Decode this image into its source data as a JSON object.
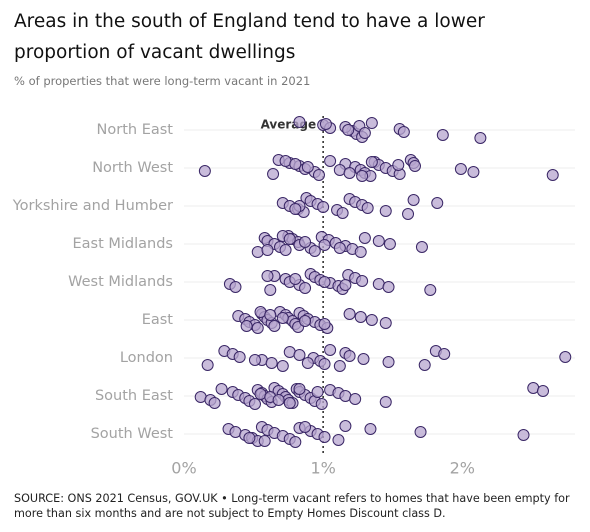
{
  "chart_data": {
    "type": "strip",
    "title": "Areas in the south of England tend to have a lower proportion of vacant dwellings",
    "subtitle": "% of properties that were long-term vacant in 2021",
    "source": "SOURCE: ONS 2021 Census, GOV.UK • Long-term vacant refers to homes that have been empty for more than six months and are not subject to Empty Homes Discount class D.",
    "categories": [
      "North East",
      "North West",
      "Yorkshire and Humber",
      "East Midlands",
      "West Midlands",
      "East",
      "London",
      "South East",
      "South West"
    ],
    "values": [
      [
        0.83,
        1.0,
        1.05,
        1.21,
        1.24,
        1.28,
        1.35,
        1.26,
        1.55,
        1.58,
        1.86,
        2.13,
        1.02,
        1.16,
        1.18,
        1.3
      ],
      [
        0.15,
        0.64,
        0.68,
        0.76,
        0.83,
        0.87,
        0.94,
        0.97,
        1.05,
        1.16,
        1.23,
        1.27,
        1.3,
        1.34,
        1.37,
        1.4,
        1.45,
        1.5,
        1.55,
        1.63,
        1.65,
        1.66,
        1.99,
        2.08,
        2.65,
        0.73,
        0.8,
        0.89,
        1.12,
        1.19,
        1.28,
        1.35,
        1.54
      ],
      [
        0.71,
        0.76,
        0.82,
        0.86,
        0.88,
        0.91,
        0.96,
        1.0,
        1.1,
        1.14,
        1.19,
        1.23,
        1.28,
        1.32,
        1.45,
        1.61,
        1.65,
        1.82,
        0.83,
        0.8
      ],
      [
        0.53,
        0.58,
        0.6,
        0.65,
        0.69,
        0.73,
        0.75,
        0.78,
        0.82,
        0.83,
        0.91,
        0.94,
        0.99,
        1.04,
        1.09,
        1.16,
        1.21,
        1.27,
        1.3,
        1.4,
        1.48,
        1.71,
        0.6,
        0.71,
        0.76,
        0.87,
        1.01,
        1.12
      ],
      [
        0.33,
        0.37,
        0.62,
        0.65,
        0.73,
        0.76,
        0.83,
        0.87,
        0.91,
        0.94,
        0.98,
        1.05,
        1.11,
        1.14,
        1.18,
        1.23,
        1.28,
        1.4,
        1.47,
        1.77,
        0.6,
        0.8,
        1.01,
        1.16
      ],
      [
        0.39,
        0.44,
        0.47,
        0.51,
        0.53,
        0.56,
        0.58,
        0.6,
        0.63,
        0.65,
        0.69,
        0.73,
        0.75,
        0.78,
        0.8,
        0.82,
        0.83,
        0.86,
        0.89,
        0.94,
        0.98,
        1.03,
        1.19,
        1.27,
        1.35,
        1.45,
        0.45,
        0.55,
        0.62,
        0.71,
        0.87,
        1.01
      ],
      [
        0.17,
        0.29,
        0.35,
        0.4,
        0.56,
        0.63,
        0.71,
        0.76,
        0.83,
        0.93,
        0.98,
        1.01,
        1.05,
        1.16,
        1.19,
        1.29,
        1.47,
        1.73,
        1.81,
        1.87,
        2.74,
        0.51,
        0.89,
        1.12
      ],
      [
        0.12,
        0.19,
        0.22,
        0.27,
        0.35,
        0.39,
        0.44,
        0.47,
        0.51,
        0.53,
        0.56,
        0.58,
        0.6,
        0.63,
        0.65,
        0.68,
        0.71,
        0.73,
        0.75,
        0.78,
        0.81,
        0.83,
        0.87,
        0.91,
        0.94,
        0.99,
        1.05,
        1.11,
        1.16,
        1.23,
        1.45,
        2.51,
        2.58,
        0.55,
        0.62,
        0.68,
        0.76,
        0.83,
        0.96
      ],
      [
        0.32,
        0.37,
        0.44,
        0.49,
        0.53,
        0.56,
        0.6,
        0.65,
        0.71,
        0.76,
        0.8,
        0.83,
        0.91,
        0.96,
        1.01,
        1.11,
        1.16,
        1.34,
        1.7,
        2.44,
        0.47,
        0.58,
        0.87
      ]
    ],
    "color": "#b7a6cf",
    "edge_color": "#3a2766",
    "average": {
      "label": "Average",
      "value": 1
    },
    "xlim": [
      0,
      2.81
    ],
    "xticks": [
      {
        "value": 0,
        "label": "0%"
      },
      {
        "value": 1,
        "label": "1%"
      },
      {
        "value": 2,
        "label": "2%"
      }
    ],
    "grid": true
  }
}
